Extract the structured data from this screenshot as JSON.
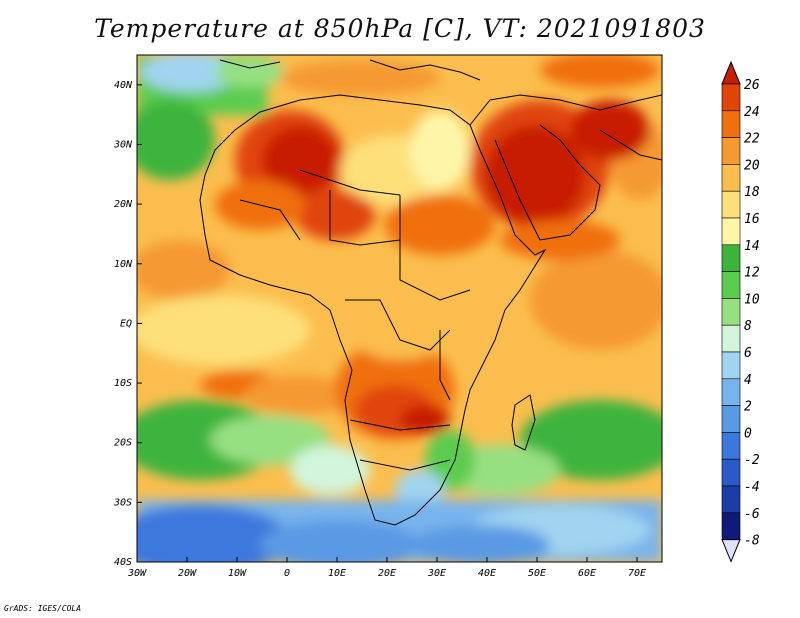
{
  "title": "Temperature at 850hPa [C], VT: 2021091803",
  "credit": "GrADS: IGES/COLA",
  "map": {
    "lon_range": [
      -30,
      75
    ],
    "lat_range": [
      -40,
      45
    ],
    "x_ticks": [
      {
        "lon": -30,
        "label": "30W"
      },
      {
        "lon": -20,
        "label": "20W"
      },
      {
        "lon": -10,
        "label": "10W"
      },
      {
        "lon": 0,
        "label": "0"
      },
      {
        "lon": 10,
        "label": "10E"
      },
      {
        "lon": 20,
        "label": "20E"
      },
      {
        "lon": 30,
        "label": "30E"
      },
      {
        "lon": 40,
        "label": "40E"
      },
      {
        "lon": 50,
        "label": "50E"
      },
      {
        "lon": 60,
        "label": "60E"
      },
      {
        "lon": 70,
        "label": "70E"
      }
    ],
    "y_ticks": [
      {
        "lat": 40,
        "label": "40N"
      },
      {
        "lat": 30,
        "label": "30N"
      },
      {
        "lat": 20,
        "label": "20N"
      },
      {
        "lat": 10,
        "label": "10N"
      },
      {
        "lat": 0,
        "label": "EQ"
      },
      {
        "lat": -10,
        "label": "10S"
      },
      {
        "lat": -20,
        "label": "20S"
      },
      {
        "lat": -30,
        "label": "30S"
      },
      {
        "lat": -40,
        "label": "40S"
      }
    ]
  },
  "colorbar": {
    "levels": [
      "26",
      "24",
      "22",
      "20",
      "18",
      "16",
      "14",
      "12",
      "10",
      "8",
      "6",
      "4",
      "2",
      "0",
      "-2",
      "-4",
      "-6",
      "-8"
    ],
    "colors": [
      "#c81e00",
      "#e04508",
      "#f07010",
      "#f59a30",
      "#fbbe4e",
      "#fde07a",
      "#fef5a8",
      "#3cb43c",
      "#5ccc50",
      "#96e082",
      "#d2f5dc",
      "#a0d4f0",
      "#78b4ec",
      "#5a9ae4",
      "#3c78dc",
      "#2a5ac8",
      "#1c3ca8",
      "#101a78",
      "#e0e0ff"
    ]
  }
}
